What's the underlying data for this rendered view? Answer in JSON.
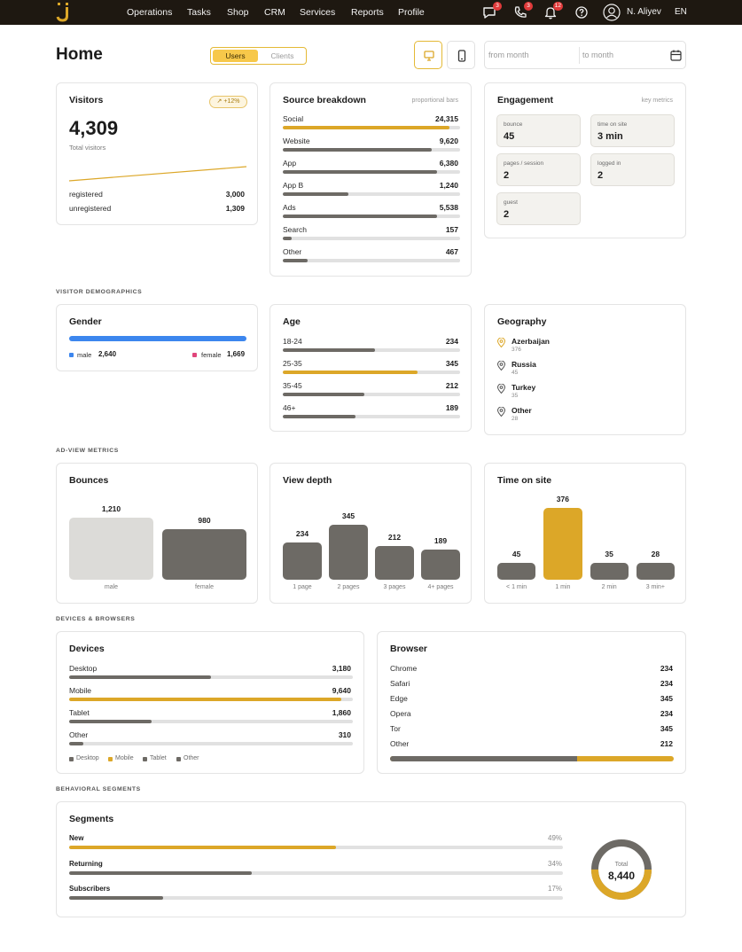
{
  "nav": {
    "items": [
      "Operations",
      "Tasks",
      "Shop",
      "CRM",
      "Services",
      "Reports",
      "Profile"
    ],
    "badges": {
      "messages": "3",
      "calls": "3",
      "notifications": "12"
    },
    "user_name": "N. Aliyev",
    "language": "EN"
  },
  "header": {
    "title": "Home",
    "toggle": {
      "active": "Users",
      "inactive": "Clients"
    },
    "date_from_placeholder": "from month",
    "date_to_placeholder": "to month"
  },
  "visitors": {
    "title": "Visitors",
    "trend": "+12%",
    "total": "4,309",
    "total_label": "Total visitors",
    "registered_label": "registered",
    "registered_value": "3,000",
    "unregistered_label": "unregistered",
    "unregistered_value": "1,309"
  },
  "source": {
    "title": "Source breakdown",
    "note": "proportional bars",
    "rows": [
      {
        "label": "Social",
        "value": "24,315",
        "fraction": 0.94,
        "highlight": true
      },
      {
        "label": "Website",
        "value": "9,620",
        "fraction": 0.84,
        "highlight": false
      },
      {
        "label": "App",
        "value": "6,380",
        "fraction": 0.87,
        "highlight": false
      },
      {
        "label": "App B",
        "value": "1,240",
        "fraction": 0.37,
        "highlight": false
      },
      {
        "label": "Ads",
        "value": "5,538",
        "fraction": 0.87,
        "highlight": false
      },
      {
        "label": "Search",
        "value": "157",
        "fraction": 0.05,
        "highlight": false
      },
      {
        "label": "Other",
        "value": "467",
        "fraction": 0.14,
        "highlight": false
      }
    ]
  },
  "engagement": {
    "title": "Engagement",
    "note": "key metrics",
    "tiles": [
      {
        "label": "bounce",
        "value": "45"
      },
      {
        "label": "time on site",
        "value": "3 min"
      },
      {
        "label": "pages / session",
        "value": "2"
      },
      {
        "label": "logged in",
        "value": "2"
      },
      {
        "label": "guest",
        "value": "2"
      }
    ]
  },
  "sections": {
    "demographics": "VISITOR DEMOGRAPHICS",
    "ad_view": "AD-VIEW METRICS",
    "devices": "DEVICES & BROWSERS",
    "behavioral": "BEHAVIORAL SEGMENTS"
  },
  "gender": {
    "title": "Gender",
    "male_label": "male",
    "male_value": "2,640",
    "female_label": "female",
    "female_value": "1,669",
    "colors": {
      "male": "#3c86ee",
      "female": "#e0457b"
    }
  },
  "age": {
    "title": "Age",
    "rows": [
      {
        "label": "18-24",
        "value": "234",
        "fraction": 0.52,
        "highlight": false
      },
      {
        "label": "25-35",
        "value": "345",
        "fraction": 0.76,
        "highlight": true
      },
      {
        "label": "35-45",
        "value": "212",
        "fraction": 0.46,
        "highlight": false
      },
      {
        "label": "46+",
        "value": "189",
        "fraction": 0.41,
        "highlight": false
      }
    ]
  },
  "geography": {
    "title": "Geography",
    "rows": [
      {
        "name": "Azerbaijan",
        "count": "376",
        "highlight": true
      },
      {
        "name": "Russia",
        "count": "45",
        "highlight": false
      },
      {
        "name": "Turkey",
        "count": "35",
        "highlight": false
      },
      {
        "name": "Other",
        "count": "28",
        "highlight": false
      }
    ]
  },
  "bounces": {
    "title": "Bounces",
    "chart_data": {
      "type": "bar",
      "categories": [
        "male",
        "female"
      ],
      "values": [
        1210,
        980
      ],
      "value_labels": [
        "1,210",
        "980"
      ],
      "ylim": [
        0,
        1210
      ]
    }
  },
  "view_depth": {
    "title": "View depth",
    "chart_data": {
      "type": "bar",
      "categories": [
        "1 page",
        "2 pages",
        "3 pages",
        "4+ pages"
      ],
      "values": [
        234,
        345,
        212,
        189
      ],
      "value_labels": [
        "234",
        "345",
        "212",
        "189"
      ],
      "ylim": [
        0,
        345
      ]
    }
  },
  "time_on_site": {
    "title": "Time on site",
    "chart_data": {
      "type": "bar",
      "categories": [
        "< 1 min",
        "1 min",
        "2 min",
        "3 min+"
      ],
      "values": [
        45,
        376,
        35,
        28
      ],
      "value_labels": [
        "45",
        "376",
        "35",
        "28"
      ],
      "ylim": [
        0,
        376
      ]
    }
  },
  "devices": {
    "title": "Devices",
    "rows": [
      {
        "label": "Desktop",
        "value": "3,180",
        "fraction": 0.5,
        "highlight": false
      },
      {
        "label": "Mobile",
        "value": "9,640",
        "fraction": 0.96,
        "highlight": true
      },
      {
        "label": "Tablet",
        "value": "1,860",
        "fraction": 0.29,
        "highlight": false
      },
      {
        "label": "Other",
        "value": "310",
        "fraction": 0.05,
        "highlight": false
      }
    ],
    "legend": [
      "Desktop",
      "Mobile",
      "Tablet",
      "Other"
    ]
  },
  "browser": {
    "title": "Browser",
    "rows": [
      {
        "label": "Chrome",
        "value": "234"
      },
      {
        "label": "Safari",
        "value": "234"
      },
      {
        "label": "Edge",
        "value": "345"
      },
      {
        "label": "Opera",
        "value": "234"
      },
      {
        "label": "Tor",
        "value": "345"
      },
      {
        "label": "Other",
        "value": "212"
      }
    ],
    "stack_fraction": 0.66
  },
  "segments": {
    "title": "Segments",
    "rows": [
      {
        "label": "New",
        "percent": "49%",
        "fraction": 0.54,
        "highlight": true
      },
      {
        "label": "Returning",
        "percent": "34%",
        "fraction": 0.37,
        "highlight": false
      },
      {
        "label": "Subscribers",
        "percent": "17%",
        "fraction": 0.19,
        "highlight": false
      }
    ],
    "total_label": "Total",
    "total_value": "8,440",
    "donut_gold_fraction": 0.5
  }
}
